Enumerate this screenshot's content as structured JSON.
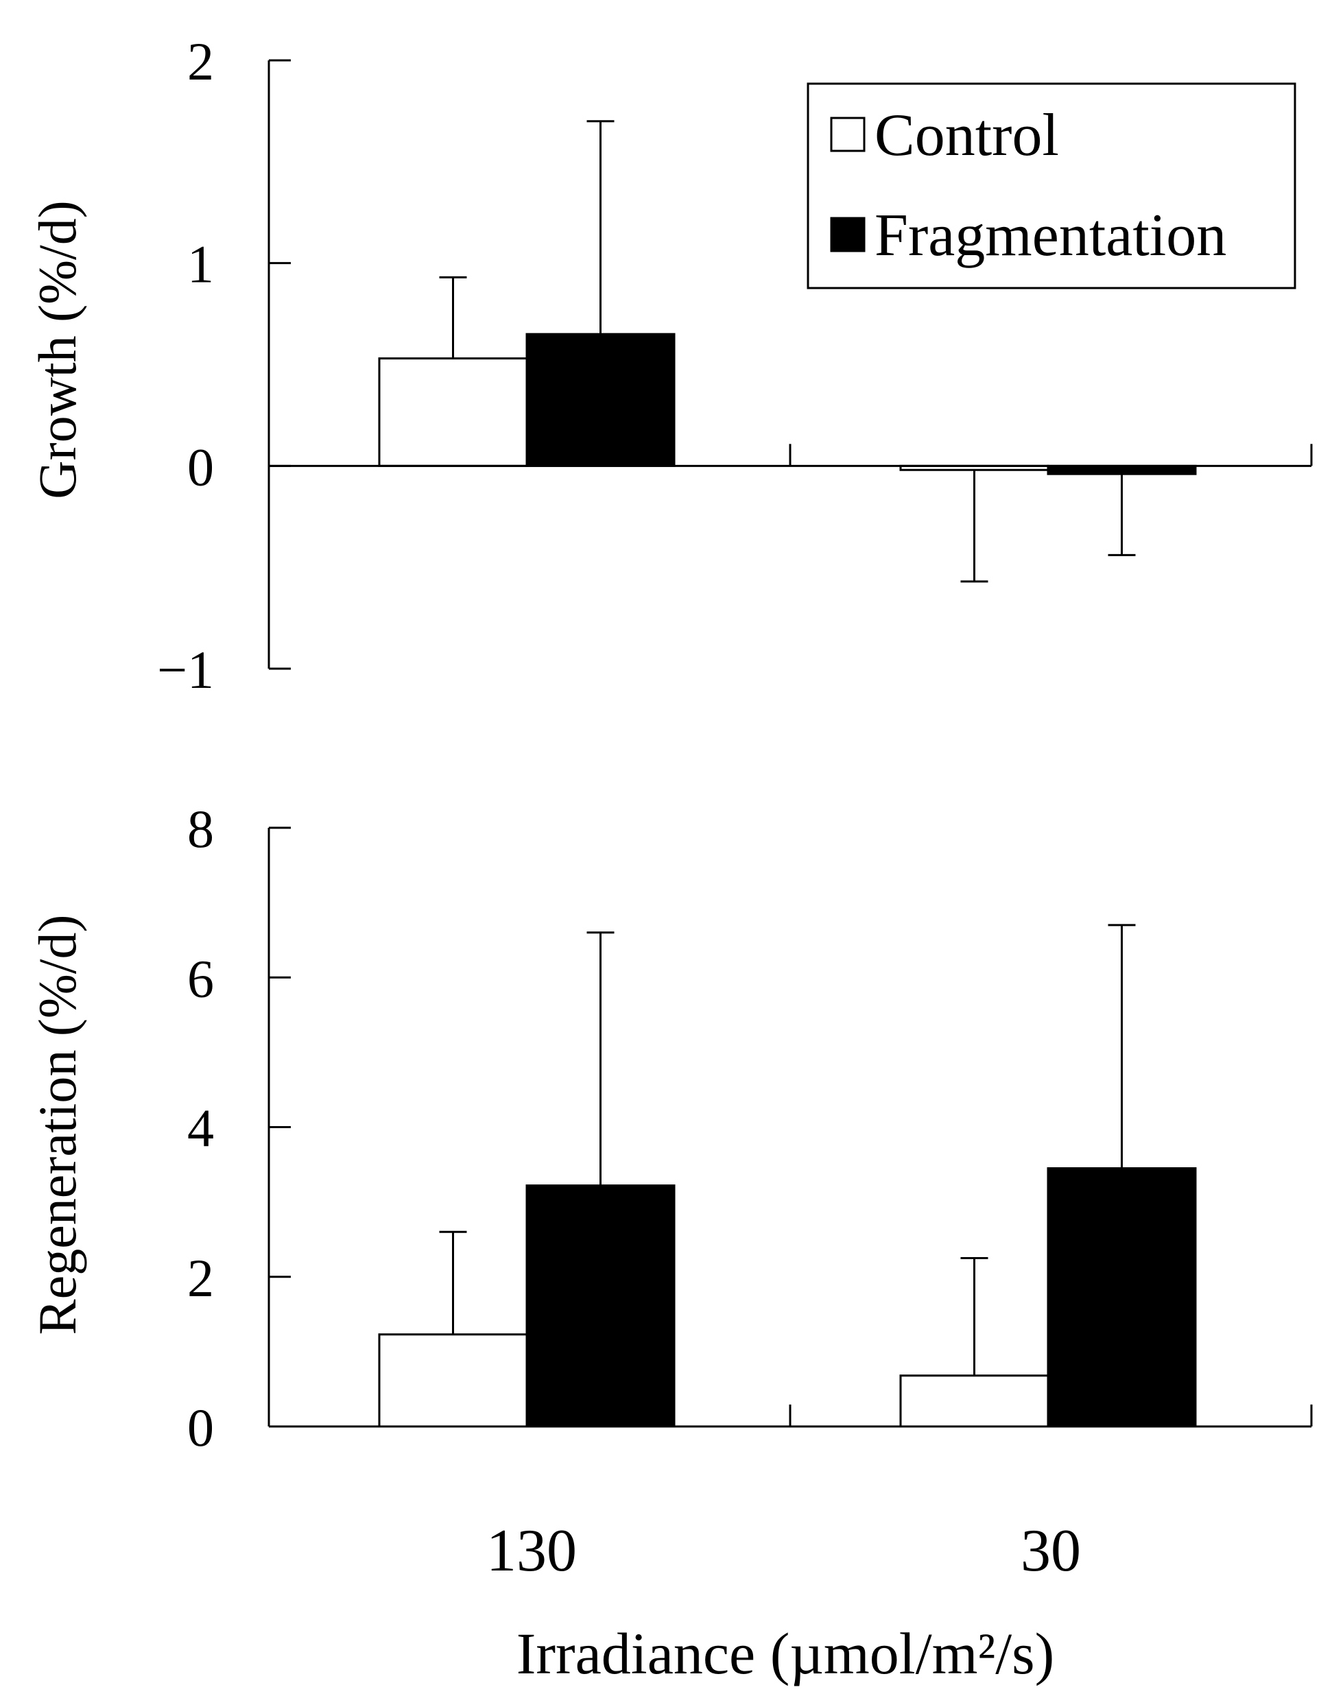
{
  "chart_data": [
    {
      "type": "bar",
      "panel": "top",
      "ylabel": "Growth (%/d)",
      "ylim": [
        -1,
        2
      ],
      "yticks": [
        2,
        1,
        0,
        -1
      ],
      "ytick_labels": [
        "2",
        "1",
        "0",
        "−1"
      ],
      "categories": [
        "130",
        "30"
      ],
      "series": [
        {
          "name": "Control",
          "color": "#ffffff",
          "values": [
            0.53,
            -0.02
          ],
          "error": [
            0.4,
            0.55
          ]
        },
        {
          "name": "Fragmentation",
          "color": "#000000",
          "values": [
            0.65,
            -0.04
          ],
          "error": [
            1.05,
            0.4
          ]
        }
      ],
      "legend": {
        "position": "top-right",
        "entries": [
          "Control",
          "Fragmentation"
        ]
      }
    },
    {
      "type": "bar",
      "panel": "bottom",
      "ylabel": "Regeneration (%/d)",
      "ylim": [
        0,
        8
      ],
      "yticks": [
        8,
        6,
        4,
        2,
        0
      ],
      "ytick_labels": [
        "8",
        "6",
        "4",
        "2",
        "0"
      ],
      "categories": [
        "130",
        "30"
      ],
      "xlabel": "Irradiance (µmol/m²/s)",
      "series": [
        {
          "name": "Control",
          "color": "#ffffff",
          "values": [
            1.23,
            0.68
          ],
          "error": [
            1.37,
            1.57
          ]
        },
        {
          "name": "Fragmentation",
          "color": "#000000",
          "values": [
            3.22,
            3.45
          ],
          "error": [
            3.38,
            3.25
          ]
        }
      ]
    }
  ]
}
